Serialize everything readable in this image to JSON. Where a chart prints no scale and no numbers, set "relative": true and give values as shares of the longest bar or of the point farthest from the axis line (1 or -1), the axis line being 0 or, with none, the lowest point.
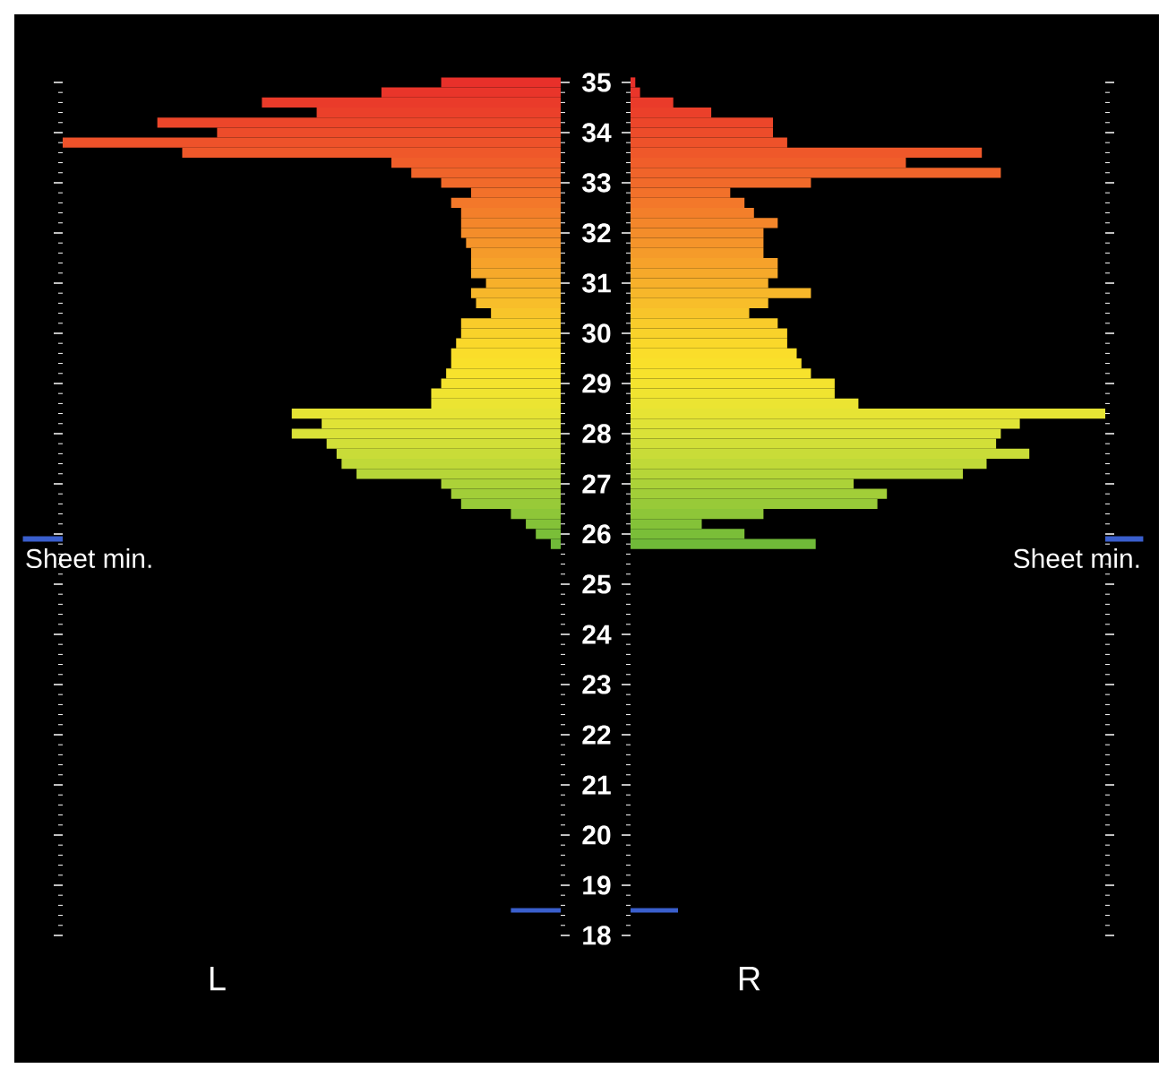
{
  "chart_data": [
    {
      "type": "bar",
      "orientation": "horizontal",
      "relative": true,
      "tick_labels": false,
      "xlabel": "L",
      "x": [
        35.0,
        34.8,
        34.6,
        34.4,
        34.2,
        34.0,
        33.8,
        33.6,
        33.4,
        33.2,
        33.0,
        32.8,
        32.6,
        32.4,
        32.2,
        32.0,
        31.8,
        31.6,
        31.4,
        31.2,
        31.0,
        30.8,
        30.6,
        30.4,
        30.2,
        30.0,
        29.8,
        29.6,
        29.4,
        29.2,
        29.0,
        28.8,
        28.6,
        28.4,
        28.2,
        28.0,
        27.8,
        27.6,
        27.4,
        27.2,
        27.0,
        26.8,
        26.6,
        26.4,
        26.2,
        26.0,
        25.8
      ],
      "ylim": [
        18,
        35
      ],
      "yticks": [
        18,
        19,
        20,
        21,
        22,
        23,
        24,
        25,
        26,
        27,
        28,
        29,
        30,
        31,
        32,
        33,
        34,
        35
      ],
      "values": [
        0.24,
        0.36,
        0.6,
        0.49,
        0.81,
        0.69,
        1,
        0.76,
        0.34,
        0.3,
        0.24,
        0.18,
        0.22,
        0.2,
        0.2,
        0.2,
        0.19,
        0.18,
        0.18,
        0.18,
        0.15,
        0.18,
        0.17,
        0.14,
        0.2,
        0.2,
        0.21,
        0.22,
        0.22,
        0.23,
        0.24,
        0.26,
        0.26,
        0.54,
        0.48,
        0.54,
        0.47,
        0.45,
        0.44,
        0.41,
        0.24,
        0.22,
        0.2,
        0.1,
        0.07,
        0.05,
        0.02
      ],
      "colors": [
        "#e8302a",
        "#e9352a",
        "#ea3b2a",
        "#eb402a",
        "#ec462a",
        "#ed4c2a",
        "#ee522a",
        "#ef582a",
        "#f05e2a",
        "#f0642a",
        "#f16a2a",
        "#f2712a",
        "#f3782a",
        "#f37f2a",
        "#f4862a",
        "#f48d2a",
        "#f5942a",
        "#f59b2a",
        "#f6a22a",
        "#f6a92a",
        "#f7b02a",
        "#f7b72a",
        "#f8be2a",
        "#f8c52a",
        "#f9cc2a",
        "#f9d22a",
        "#fad82a",
        "#fadd2a",
        "#f9e02a",
        "#f7e22c",
        "#f4e32e",
        "#f0e430",
        "#ebe432",
        "#e6e434",
        "#e0e336",
        "#dae238",
        "#d2df38",
        "#c9dc38",
        "#c0d938",
        "#b6d638",
        "#acd238",
        "#a2ce38",
        "#98ca38",
        "#8ec638",
        "#84c238",
        "#7abe38",
        "#70ba38"
      ],
      "ref_lines": [
        {
          "axis": "y",
          "value": 25.9,
          "label": "Sheet min.",
          "color": "#3a5fcd"
        },
        {
          "axis": "y",
          "value": 18.5,
          "color": "#3a5fcd"
        }
      ]
    },
    {
      "type": "bar",
      "orientation": "horizontal",
      "relative": true,
      "tick_labels": "y",
      "xlabel": "R",
      "x": [
        35.0,
        34.8,
        34.6,
        34.4,
        34.2,
        34.0,
        33.8,
        33.6,
        33.4,
        33.2,
        33.0,
        32.8,
        32.6,
        32.4,
        32.2,
        32.0,
        31.8,
        31.6,
        31.4,
        31.2,
        31.0,
        30.8,
        30.6,
        30.4,
        30.2,
        30.0,
        29.8,
        29.6,
        29.4,
        29.2,
        29.0,
        28.8,
        28.6,
        28.4,
        28.2,
        28.0,
        27.8,
        27.6,
        27.4,
        27.2,
        27.0,
        26.8,
        26.6,
        26.4,
        26.2,
        26.0,
        25.8
      ],
      "ylim": [
        18,
        35
      ],
      "yticks": [
        18,
        19,
        20,
        21,
        22,
        23,
        24,
        25,
        26,
        27,
        28,
        29,
        30,
        31,
        32,
        33,
        34,
        35
      ],
      "values": [
        0.01,
        0.02,
        0.09,
        0.17,
        0.3,
        0.3,
        0.33,
        0.74,
        0.58,
        0.78,
        0.38,
        0.21,
        0.24,
        0.26,
        0.31,
        0.28,
        0.28,
        0.28,
        0.31,
        0.31,
        0.29,
        0.38,
        0.29,
        0.25,
        0.31,
        0.33,
        0.33,
        0.35,
        0.36,
        0.38,
        0.43,
        0.43,
        0.48,
        1,
        0.82,
        0.78,
        0.77,
        0.84,
        0.75,
        0.7,
        0.47,
        0.54,
        0.52,
        0.28,
        0.15,
        0.24,
        0.39
      ],
      "colors": [
        "#e8302a",
        "#e9352a",
        "#ea3b2a",
        "#eb402a",
        "#ec462a",
        "#ed4c2a",
        "#ee522a",
        "#ef582a",
        "#f05e2a",
        "#f0642a",
        "#f16a2a",
        "#f2712a",
        "#f3782a",
        "#f37f2a",
        "#f4862a",
        "#f48d2a",
        "#f5942a",
        "#f59b2a",
        "#f6a22a",
        "#f6a92a",
        "#f7b02a",
        "#f7b72a",
        "#f8be2a",
        "#f8c52a",
        "#f9cc2a",
        "#f9d22a",
        "#fad82a",
        "#fadd2a",
        "#f9e02a",
        "#f7e22c",
        "#f4e32e",
        "#f0e430",
        "#ebe432",
        "#e6e434",
        "#e0e336",
        "#dae238",
        "#d2df38",
        "#c9dc38",
        "#c0d938",
        "#b6d638",
        "#acd238",
        "#a2ce38",
        "#98ca38",
        "#8ec638",
        "#84c238",
        "#7abe38",
        "#70ba38"
      ],
      "ref_lines": [
        {
          "axis": "y",
          "value": 25.9,
          "label": "Sheet min.",
          "color": "#3a5fcd"
        },
        {
          "axis": "y",
          "value": 18.5,
          "color": "#3a5fcd"
        }
      ]
    }
  ]
}
